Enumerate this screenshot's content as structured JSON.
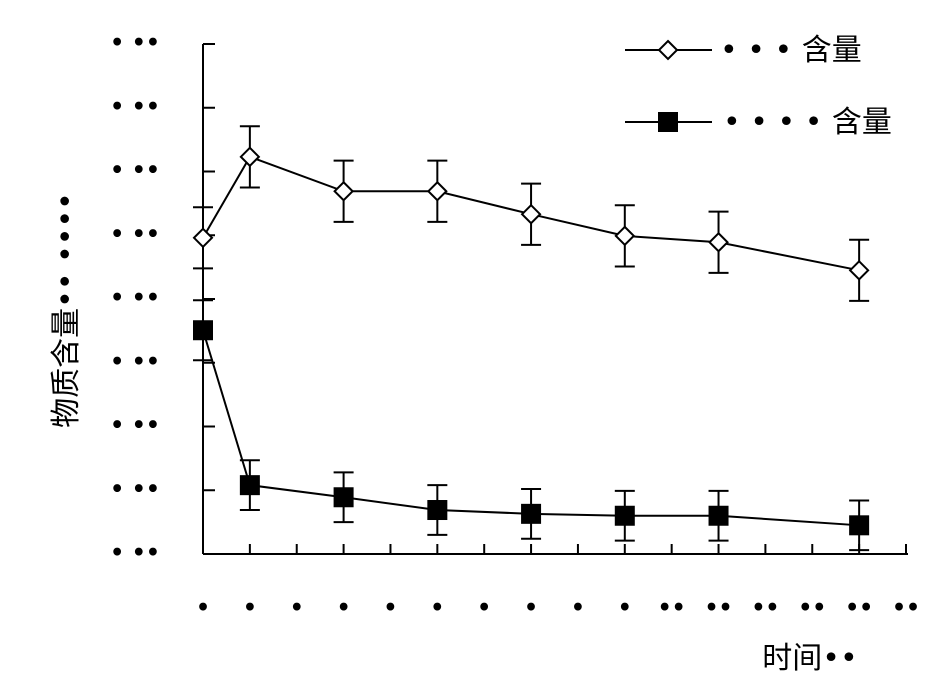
{
  "chart_data": {
    "type": "line",
    "ylabel": "物质含量•• ••••",
    "xlabel": "时间••",
    "xlim": [
      0,
      15
    ],
    "ylim": [
      0,
      8
    ],
    "xticks": [
      {
        "value": 0,
        "label": "•"
      },
      {
        "value": 1,
        "label": "•"
      },
      {
        "value": 2,
        "label": "•"
      },
      {
        "value": 3,
        "label": "•"
      },
      {
        "value": 4,
        "label": "•"
      },
      {
        "value": 5,
        "label": "•"
      },
      {
        "value": 6,
        "label": "•"
      },
      {
        "value": 7,
        "label": "•"
      },
      {
        "value": 8,
        "label": "•"
      },
      {
        "value": 9,
        "label": "•"
      },
      {
        "value": 10,
        "label": "••"
      },
      {
        "value": 11,
        "label": "••"
      },
      {
        "value": 12,
        "label": "••"
      },
      {
        "value": 13,
        "label": "••"
      },
      {
        "value": 14,
        "label": "••"
      },
      {
        "value": 15,
        "label": "••"
      }
    ],
    "yticks": [
      {
        "value": 0,
        "label": "• ••"
      },
      {
        "value": 1,
        "label": "• ••"
      },
      {
        "value": 2,
        "label": "• ••"
      },
      {
        "value": 3,
        "label": "• ••"
      },
      {
        "value": 4,
        "label": "• ••"
      },
      {
        "value": 5,
        "label": "• ••"
      },
      {
        "value": 6,
        "label": "• ••"
      },
      {
        "value": 7,
        "label": "• ••"
      },
      {
        "value": 8,
        "label": "• ••"
      }
    ],
    "x": [
      0,
      1,
      3,
      5,
      7,
      9,
      11,
      14
    ],
    "series": [
      {
        "name": "• • • 含量",
        "marker": "diamond",
        "color": "#000000",
        "values": [
          4.96,
          6.23,
          5.69,
          5.69,
          5.33,
          4.99,
          4.89,
          4.45
        ],
        "errors": [
          0.48,
          0.48,
          0.48,
          0.48,
          0.48,
          0.48,
          0.48,
          0.48
        ]
      },
      {
        "name": "• • • • 含量",
        "marker": "square",
        "color": "#000000",
        "values": [
          3.51,
          1.08,
          0.89,
          0.69,
          0.63,
          0.6,
          0.6,
          0.45
        ],
        "errors": [
          0.47,
          0.39,
          0.39,
          0.39,
          0.39,
          0.39,
          0.39,
          0.39
        ]
      }
    ]
  }
}
